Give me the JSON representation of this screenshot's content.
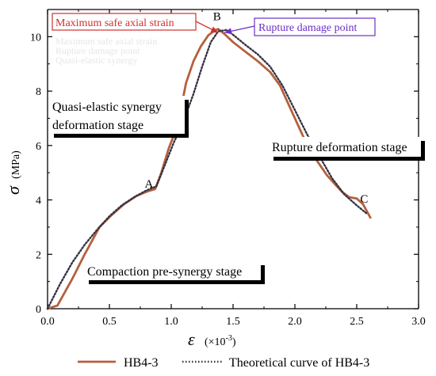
{
  "chart_data": {
    "type": "line",
    "xlabel_symbol": "ε",
    "xlabel_unit": " (×10",
    "xlabel_exp": "-3",
    "xlabel_close": ")",
    "ylabel_symbol": "σ",
    "ylabel_unit": " (MPa)",
    "xlim": [
      0.0,
      3.0
    ],
    "ylim": [
      0,
      11
    ],
    "x_ticks": [
      0.0,
      0.5,
      1.0,
      1.5,
      2.0,
      2.5,
      3.0
    ],
    "x_tick_labels": [
      "0.0",
      "0.5",
      "1.0",
      "1.5",
      "2.0",
      "2.5",
      "3.0"
    ],
    "y_ticks": [
      0,
      2,
      4,
      6,
      8,
      10
    ],
    "y_tick_labels": [
      "0",
      "2",
      "4",
      "6",
      "8",
      "10"
    ],
    "grid": false,
    "legend_position": "bottom",
    "series": [
      {
        "name": "HB4-3",
        "style": "solid",
        "color": "#b5603c",
        "x": [
          0.0,
          0.08,
          0.2,
          0.3,
          0.42,
          0.52,
          0.62,
          0.72,
          0.8,
          0.87,
          0.92,
          0.98,
          1.05,
          1.12,
          1.18,
          1.24,
          1.3,
          1.36,
          1.38,
          1.43,
          1.5,
          1.6,
          1.7,
          1.8,
          1.88,
          1.95,
          2.02,
          2.08,
          2.14,
          2.2,
          2.26,
          2.32,
          2.38,
          2.44,
          2.5,
          2.55,
          2.58,
          2.61
        ],
        "y": [
          0.0,
          0.12,
          1.1,
          2.0,
          3.0,
          3.45,
          3.85,
          4.15,
          4.3,
          4.4,
          5.0,
          5.9,
          6.7,
          8.3,
          9.1,
          9.65,
          10.05,
          10.25,
          10.28,
          10.1,
          9.8,
          9.45,
          9.1,
          8.7,
          8.2,
          7.5,
          6.8,
          6.2,
          5.7,
          5.3,
          4.9,
          4.6,
          4.3,
          4.1,
          4.05,
          3.85,
          3.6,
          3.35
        ]
      },
      {
        "name": "Theoretical curve of HB4-3",
        "style": "dotted",
        "color": "#333344",
        "x": [
          0.0,
          0.1,
          0.2,
          0.3,
          0.4,
          0.5,
          0.6,
          0.7,
          0.8,
          0.88,
          0.95,
          1.02,
          1.1,
          1.18,
          1.25,
          1.32,
          1.38,
          1.45,
          1.52,
          1.6,
          1.7,
          1.8,
          1.9,
          2.0,
          2.1,
          2.2,
          2.3,
          2.4,
          2.5,
          2.58
        ],
        "y": [
          0.0,
          0.9,
          1.7,
          2.35,
          2.9,
          3.4,
          3.8,
          4.1,
          4.35,
          4.5,
          5.3,
          6.1,
          6.9,
          7.9,
          8.9,
          9.8,
          10.2,
          10.25,
          10.0,
          9.7,
          9.35,
          8.9,
          8.2,
          7.3,
          6.4,
          5.6,
          4.8,
          4.2,
          3.8,
          3.5
        ]
      }
    ],
    "annotations": [
      {
        "id": "A",
        "text": "A",
        "x": 0.82,
        "y": 4.45
      },
      {
        "id": "B",
        "text": "B",
        "x": 1.37,
        "y": 10.6
      },
      {
        "id": "C",
        "text": "C",
        "x": 2.56,
        "y": 3.9
      }
    ],
    "callouts": {
      "max_safe": {
        "text": "Maximum safe axial strain",
        "color": "#d03030",
        "point_x": 1.38,
        "point_y": 10.15
      },
      "rupture_damage": {
        "text": "Rupture damage point",
        "color": "#6a2ec8",
        "point_x": 1.43,
        "point_y": 10.15
      }
    },
    "stage_boxes": {
      "quasi_line1": "Quasi-elastic synergy",
      "quasi_line2": "deformation stage",
      "rupture_stage": "Rupture deformation stage",
      "compaction_stage": "Compaction pre-synergy stage"
    },
    "ghost_text_lines": [
      "Maximum safe axial strain",
      "Rupture damage point",
      "Quasi-elastic synergy"
    ]
  }
}
